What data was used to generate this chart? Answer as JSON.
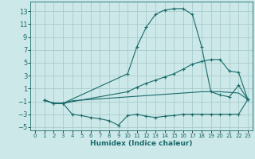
{
  "background_color": "#cce8e8",
  "grid_color": "#aacccc",
  "line_color": "#1a6b6b",
  "xlabel": "Humidex (Indice chaleur)",
  "xlim": [
    -0.5,
    23.5
  ],
  "ylim": [
    -5.5,
    14.5
  ],
  "xticks": [
    0,
    1,
    2,
    3,
    4,
    5,
    6,
    7,
    8,
    9,
    10,
    11,
    12,
    13,
    14,
    15,
    16,
    17,
    18,
    19,
    20,
    21,
    22,
    23
  ],
  "yticks": [
    -5,
    -3,
    -1,
    1,
    3,
    5,
    7,
    9,
    11,
    13
  ],
  "line_bottom_x": [
    1,
    2,
    3,
    4,
    5,
    6,
    7,
    8,
    9,
    10,
    11,
    12,
    13,
    14,
    15,
    16,
    17,
    18,
    19,
    20,
    21,
    22,
    23
  ],
  "line_bottom_y": [
    -0.8,
    -1.3,
    -1.3,
    -3.0,
    -3.2,
    -3.5,
    -3.7,
    -4.0,
    -4.7,
    -3.2,
    -3.0,
    -3.3,
    -3.5,
    -3.3,
    -3.2,
    -3.0,
    -3.0,
    -3.0,
    -3.0,
    -3.0,
    -3.0,
    -3.0,
    -0.7
  ],
  "line_top_x": [
    1,
    2,
    3,
    10,
    11,
    12,
    13,
    14,
    15,
    16,
    17,
    18,
    19,
    20,
    21,
    22,
    23
  ],
  "line_top_y": [
    -0.8,
    -1.3,
    -1.3,
    3.3,
    7.5,
    10.5,
    12.5,
    13.2,
    13.4,
    13.4,
    12.5,
    7.5,
    0.5,
    0.0,
    -0.3,
    1.5,
    -0.7
  ],
  "line_mid_x": [
    1,
    2,
    3,
    10,
    11,
    12,
    13,
    14,
    15,
    16,
    17,
    18,
    19,
    20,
    21,
    22,
    23
  ],
  "line_mid_y": [
    -0.8,
    -1.3,
    -1.3,
    0.5,
    1.2,
    1.8,
    2.3,
    2.8,
    3.3,
    4.0,
    4.8,
    5.2,
    5.5,
    5.5,
    3.7,
    3.5,
    -0.7
  ],
  "line_base_x": [
    1,
    2,
    3,
    4,
    5,
    6,
    7,
    8,
    9,
    10,
    11,
    12,
    13,
    14,
    15,
    16,
    17,
    18,
    19,
    20,
    21,
    22,
    23
  ],
  "line_base_y": [
    -0.8,
    -1.3,
    -1.3,
    -0.9,
    -0.8,
    -0.7,
    -0.6,
    -0.5,
    -0.4,
    -0.3,
    -0.2,
    -0.1,
    0.0,
    0.1,
    0.2,
    0.3,
    0.4,
    0.5,
    0.5,
    0.5,
    0.4,
    0.3,
    -0.7
  ]
}
